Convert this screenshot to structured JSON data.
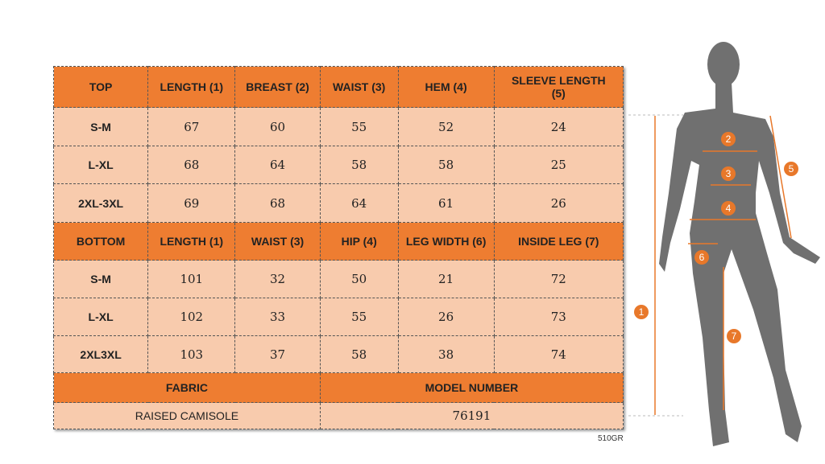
{
  "top": {
    "headers": [
      "TOP",
      "LENGTH (1)",
      "BREAST (2)",
      "WAIST (3)",
      "HEM (4)",
      "SLEEVE LENGTH (5)"
    ],
    "rows": [
      [
        "S-M",
        "67",
        "60",
        "55",
        "52",
        "24"
      ],
      [
        "L-XL",
        "68",
        "64",
        "58",
        "58",
        "25"
      ],
      [
        "2XL-3XL",
        "69",
        "68",
        "64",
        "61",
        "26"
      ]
    ]
  },
  "bottom": {
    "headers": [
      "BOTTOM",
      "LENGTH (1)",
      "WAIST (3)",
      "HIP (4)",
      "LEG WIDTH (6)",
      "INSIDE LEG (7)"
    ],
    "rows": [
      [
        "S-M",
        "101",
        "32",
        "50",
        "21",
        "72"
      ],
      [
        "L-XL",
        "102",
        "33",
        "55",
        "26",
        "73"
      ],
      [
        "2XL3XL",
        "103",
        "37",
        "58",
        "38",
        "74"
      ]
    ]
  },
  "footer": {
    "fabric_label": "FABRIC",
    "model_label": "MODEL NUMBER",
    "fabric": "RAISED CAMISOLE",
    "model": "76191"
  },
  "code": "510GR",
  "figure": {
    "markers": [
      "1",
      "2",
      "3",
      "4",
      "5",
      "6",
      "7"
    ]
  },
  "colors": {
    "header": "#ee7d31",
    "cell": "#f8cbad",
    "accent": "#e8782a",
    "silhouette": "#707070"
  }
}
